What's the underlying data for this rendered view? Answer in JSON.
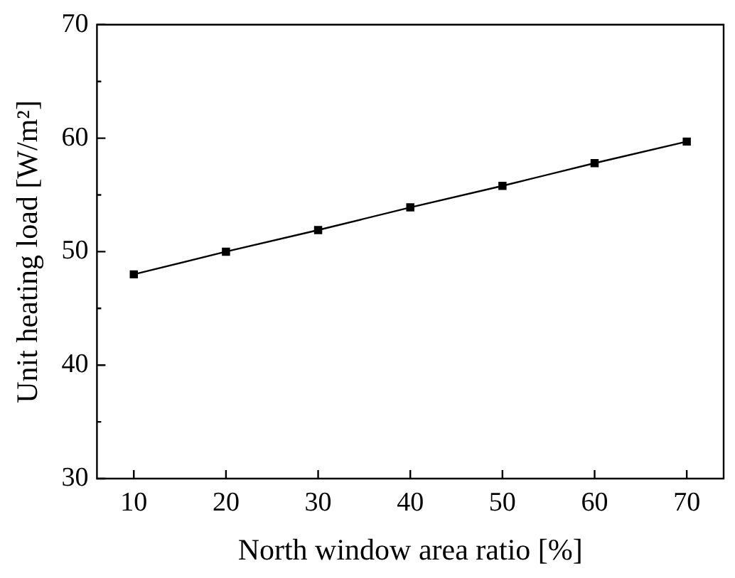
{
  "chart_data": {
    "type": "line",
    "xlabel": "North window area ratio [%]",
    "ylabel": "Unit heating load [W/m²]",
    "x": [
      10,
      20,
      30,
      40,
      50,
      60,
      70
    ],
    "series": [
      {
        "color": "#000000",
        "values": [
          48,
          50,
          51.9,
          53.9,
          55.8,
          57.8,
          59.7
        ]
      }
    ],
    "xlim": [
      6,
      74
    ],
    "xticks": [
      10,
      20,
      30,
      40,
      50,
      60,
      70
    ],
    "ylim": [
      30,
      70
    ],
    "yticks": [
      30,
      {
        "value": 35,
        "label": null
      },
      40,
      {
        "value": 45,
        "label": null
      },
      50,
      {
        "value": 55,
        "label": null
      },
      60,
      {
        "value": 65,
        "label": null
      },
      70
    ],
    "marker": "square",
    "line_style": "solid",
    "grid": false,
    "legend": false
  }
}
